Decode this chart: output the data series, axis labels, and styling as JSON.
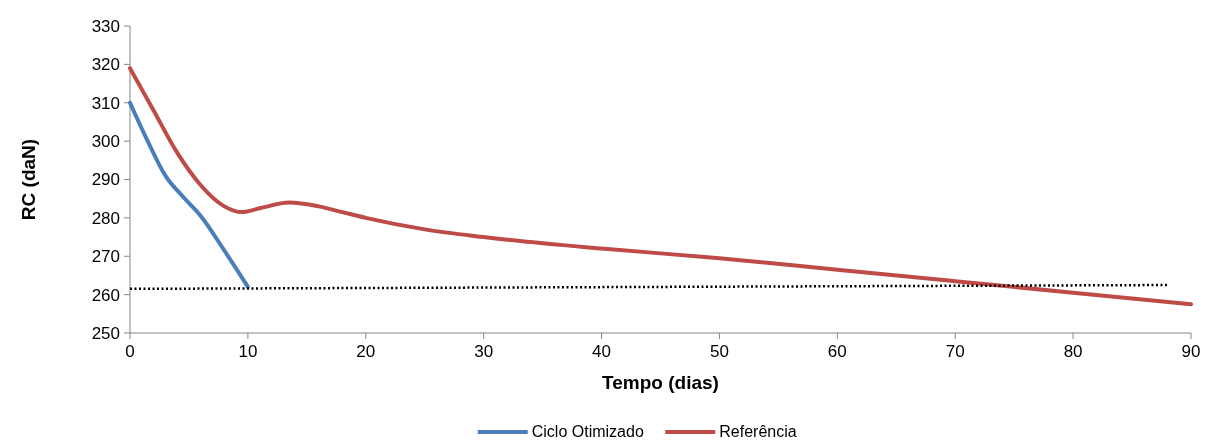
{
  "chart_data": {
    "type": "line",
    "xlabel": "Tempo (dias)",
    "ylabel": "RC (daN)",
    "xlim": [
      0,
      90
    ],
    "xticks": [
      0,
      10,
      20,
      30,
      40,
      50,
      60,
      70,
      80,
      90
    ],
    "ylim": [
      250,
      330
    ],
    "yticks": [
      250,
      260,
      270,
      280,
      290,
      300,
      310,
      320,
      330
    ],
    "grid": false,
    "legend": "bottom",
    "series": [
      {
        "name": "Ciclo Otimizado",
        "color": "#4a7ebb",
        "x": [
          0,
          1.5,
          3,
          4.5,
          6,
          8,
          10
        ],
        "values": [
          310,
          300,
          291,
          285.5,
          280.5,
          271.5,
          262
        ]
      },
      {
        "name": "Referência",
        "color": "#be4b48",
        "x": [
          0,
          2,
          4,
          6,
          8,
          9.5,
          11,
          13.5,
          16,
          18,
          20,
          25,
          30,
          40,
          50,
          60,
          70,
          80,
          90
        ],
        "values": [
          319,
          308,
          297,
          288.5,
          283,
          281.5,
          282.5,
          284,
          283,
          281.5,
          280,
          277,
          275,
          272,
          269.5,
          266.5,
          263.5,
          260.5,
          257.5
        ]
      },
      {
        "color": "#000000",
        "line_style": "dotted",
        "x": [
          0,
          88
        ],
        "values": [
          261.5,
          262.5
        ]
      }
    ]
  }
}
